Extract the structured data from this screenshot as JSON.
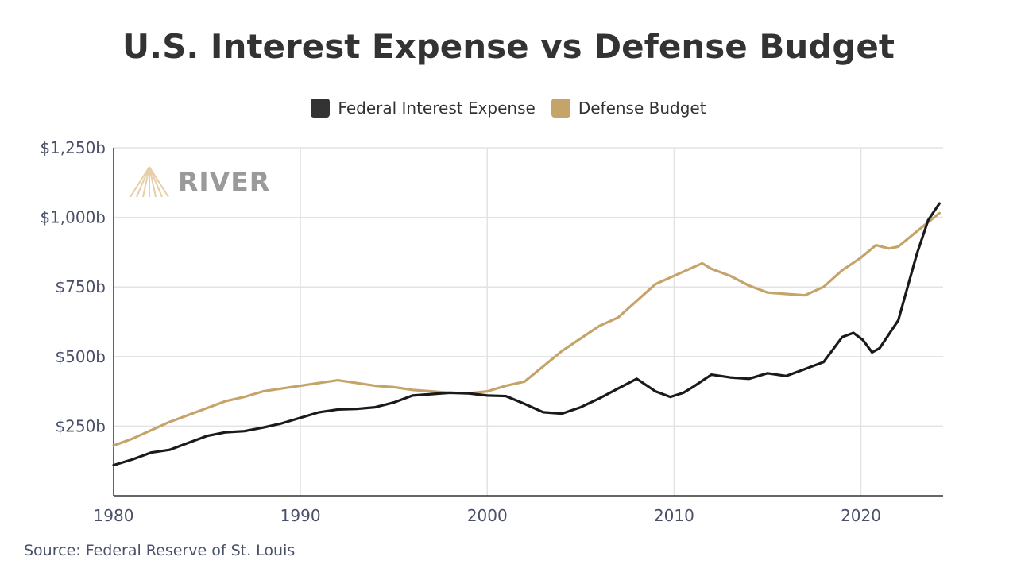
{
  "chart_data": {
    "type": "line",
    "title": "U.S. Interest Expense vs Defense Budget",
    "source": "Source: Federal Reserve of St. Louis",
    "watermark": "RIVER",
    "xlabel": "",
    "ylabel": "",
    "xlim": [
      1980,
      2024.4
    ],
    "ylim": [
      0,
      1250
    ],
    "x_ticks": [
      {
        "value": 1980,
        "label": "1980"
      },
      {
        "value": 1990,
        "label": "1990"
      },
      {
        "value": 2000,
        "label": "2000"
      },
      {
        "value": 2010,
        "label": "2010"
      },
      {
        "value": 2020,
        "label": "2020"
      }
    ],
    "y_ticks": [
      {
        "value": 250,
        "label": "$250b"
      },
      {
        "value": 500,
        "label": "$500b"
      },
      {
        "value": 750,
        "label": "$750b"
      },
      {
        "value": 1000,
        "label": "$1,000b"
      },
      {
        "value": 1250,
        "label": "$1,250b"
      }
    ],
    "grid": true,
    "legend_position": "top-center",
    "series": [
      {
        "name": "Federal Interest Expense",
        "color": "#1a1a1a",
        "points": [
          [
            1980,
            110
          ],
          [
            1981,
            130
          ],
          [
            1982,
            155
          ],
          [
            1983,
            165
          ],
          [
            1984,
            190
          ],
          [
            1985,
            215
          ],
          [
            1986,
            228
          ],
          [
            1987,
            232
          ],
          [
            1988,
            245
          ],
          [
            1989,
            260
          ],
          [
            1990,
            280
          ],
          [
            1991,
            300
          ],
          [
            1992,
            310
          ],
          [
            1993,
            312
          ],
          [
            1994,
            318
          ],
          [
            1995,
            335
          ],
          [
            1996,
            360
          ],
          [
            1997,
            365
          ],
          [
            1998,
            370
          ],
          [
            1999,
            368
          ],
          [
            2000,
            360
          ],
          [
            2001,
            358
          ],
          [
            2002,
            330
          ],
          [
            2003,
            300
          ],
          [
            2004,
            295
          ],
          [
            2005,
            318
          ],
          [
            2006,
            350
          ],
          [
            2007,
            385
          ],
          [
            2008,
            420
          ],
          [
            2009,
            375
          ],
          [
            2009.8,
            355
          ],
          [
            2010.5,
            370
          ],
          [
            2011,
            390
          ],
          [
            2012,
            435
          ],
          [
            2013,
            425
          ],
          [
            2014,
            420
          ],
          [
            2015,
            440
          ],
          [
            2016,
            430
          ],
          [
            2017,
            455
          ],
          [
            2018,
            480
          ],
          [
            2019,
            570
          ],
          [
            2019.6,
            585
          ],
          [
            2020.1,
            560
          ],
          [
            2020.6,
            515
          ],
          [
            2021,
            530
          ],
          [
            2021.5,
            580
          ],
          [
            2022,
            630
          ],
          [
            2022.5,
            750
          ],
          [
            2023,
            870
          ],
          [
            2023.6,
            990
          ],
          [
            2024.2,
            1050
          ]
        ]
      },
      {
        "name": "Defense Budget",
        "color": "#c5a46a",
        "points": [
          [
            1980,
            180
          ],
          [
            1981,
            205
          ],
          [
            1982,
            235
          ],
          [
            1983,
            265
          ],
          [
            1984,
            290
          ],
          [
            1985,
            315
          ],
          [
            1986,
            340
          ],
          [
            1987,
            355
          ],
          [
            1988,
            375
          ],
          [
            1989,
            385
          ],
          [
            1990,
            395
          ],
          [
            1991,
            405
          ],
          [
            1992,
            415
          ],
          [
            1993,
            405
          ],
          [
            1994,
            395
          ],
          [
            1995,
            390
          ],
          [
            1996,
            380
          ],
          [
            1997,
            375
          ],
          [
            1998,
            370
          ],
          [
            1999,
            368
          ],
          [
            2000,
            375
          ],
          [
            2001,
            395
          ],
          [
            2002,
            410
          ],
          [
            2003,
            465
          ],
          [
            2004,
            520
          ],
          [
            2005,
            565
          ],
          [
            2006,
            610
          ],
          [
            2007,
            640
          ],
          [
            2008,
            700
          ],
          [
            2009,
            760
          ],
          [
            2010,
            790
          ],
          [
            2011,
            820
          ],
          [
            2011.5,
            835
          ],
          [
            2012,
            815
          ],
          [
            2013,
            790
          ],
          [
            2014,
            755
          ],
          [
            2015,
            730
          ],
          [
            2016,
            725
          ],
          [
            2017,
            720
          ],
          [
            2018,
            750
          ],
          [
            2019,
            810
          ],
          [
            2020,
            855
          ],
          [
            2020.8,
            900
          ],
          [
            2021.5,
            888
          ],
          [
            2022,
            895
          ],
          [
            2023,
            950
          ],
          [
            2024.2,
            1015
          ]
        ]
      }
    ]
  }
}
